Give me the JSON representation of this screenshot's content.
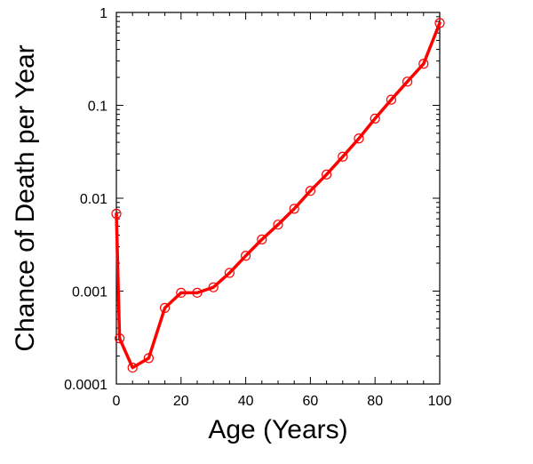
{
  "chart_data": {
    "type": "line",
    "xlabel": "Age (Years)",
    "ylabel": "Chance of Death per Year",
    "x_scale": "linear",
    "y_scale": "log",
    "xlim": [
      0,
      100
    ],
    "ylim": [
      0.0001,
      1
    ],
    "x_ticks": [
      0,
      20,
      40,
      60,
      80,
      100
    ],
    "x_tick_labels": [
      "0",
      "20",
      "40",
      "60",
      "80",
      "100"
    ],
    "y_ticks": [
      0.0001,
      0.001,
      0.01,
      0.1,
      1
    ],
    "y_tick_labels": [
      "0.0001",
      "0.001",
      "0.01",
      "0.1",
      "1"
    ],
    "grid": false,
    "legend": "none",
    "series": [
      {
        "color": "#ff0000",
        "marker": "open-circle",
        "x": [
          0,
          1,
          5,
          10,
          15,
          20,
          25,
          30,
          35,
          40,
          45,
          50,
          55,
          60,
          65,
          70,
          75,
          80,
          85,
          90,
          95,
          100
        ],
        "y": [
          0.0068,
          0.00031,
          0.00015,
          0.00019,
          0.00066,
          0.00096,
          0.00096,
          0.0011,
          0.00157,
          0.0024,
          0.0036,
          0.0052,
          0.0077,
          0.012,
          0.018,
          0.028,
          0.044,
          0.072,
          0.115,
          0.18,
          0.28,
          0.77
        ]
      }
    ]
  }
}
